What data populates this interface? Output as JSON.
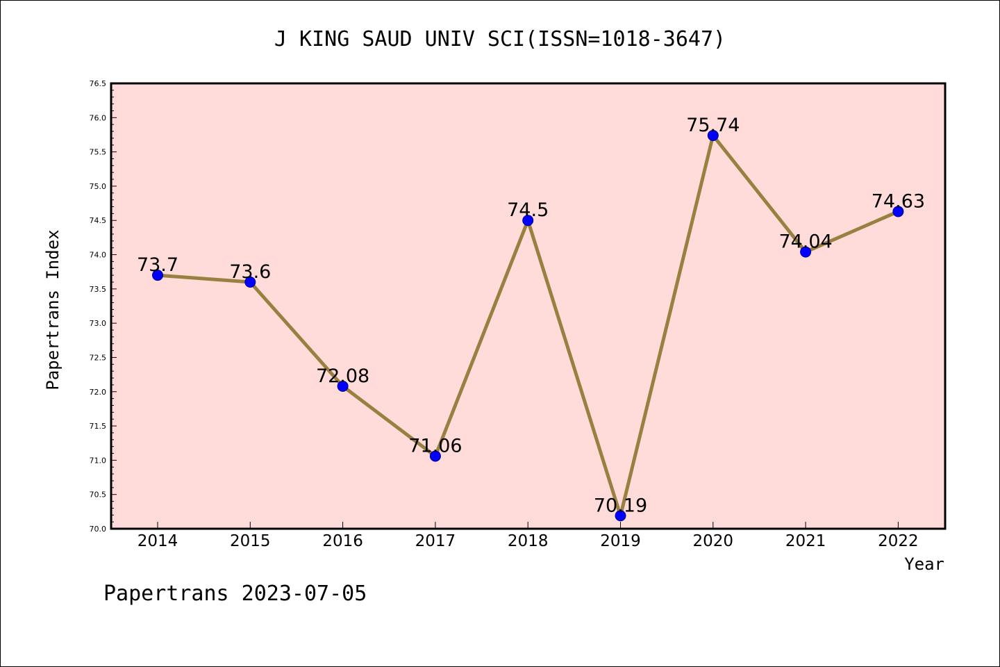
{
  "chart_data": {
    "type": "line",
    "title": "J KING SAUD UNIV SCI(ISSN=1018-3647)",
    "xlabel": "Year",
    "ylabel": "Papertrans Index",
    "categories": [
      "2014",
      "2015",
      "2016",
      "2017",
      "2018",
      "2019",
      "2020",
      "2021",
      "2022"
    ],
    "values": [
      73.7,
      73.6,
      72.08,
      71.06,
      74.5,
      70.19,
      75.74,
      74.04,
      74.63
    ],
    "data_labels": [
      "73.7",
      "73.6",
      "72.08",
      "71.06",
      "74.5",
      "70.19",
      "75.74",
      "74.04",
      "74.63"
    ],
    "ylim": [
      70.0,
      76.5
    ],
    "yticks": [
      "70.0",
      "70.5",
      "71.0",
      "71.5",
      "72.0",
      "72.5",
      "73.0",
      "73.5",
      "74.0",
      "74.5",
      "75.0",
      "75.5",
      "76.0",
      "76.5"
    ],
    "grid": false,
    "colors": {
      "plot_background": "#ffdcda",
      "line": "#9a8040",
      "marker": "#0000ff",
      "marker_edge": "#00008b"
    }
  },
  "footer": {
    "text": "Papertrans 2023-07-05"
  }
}
